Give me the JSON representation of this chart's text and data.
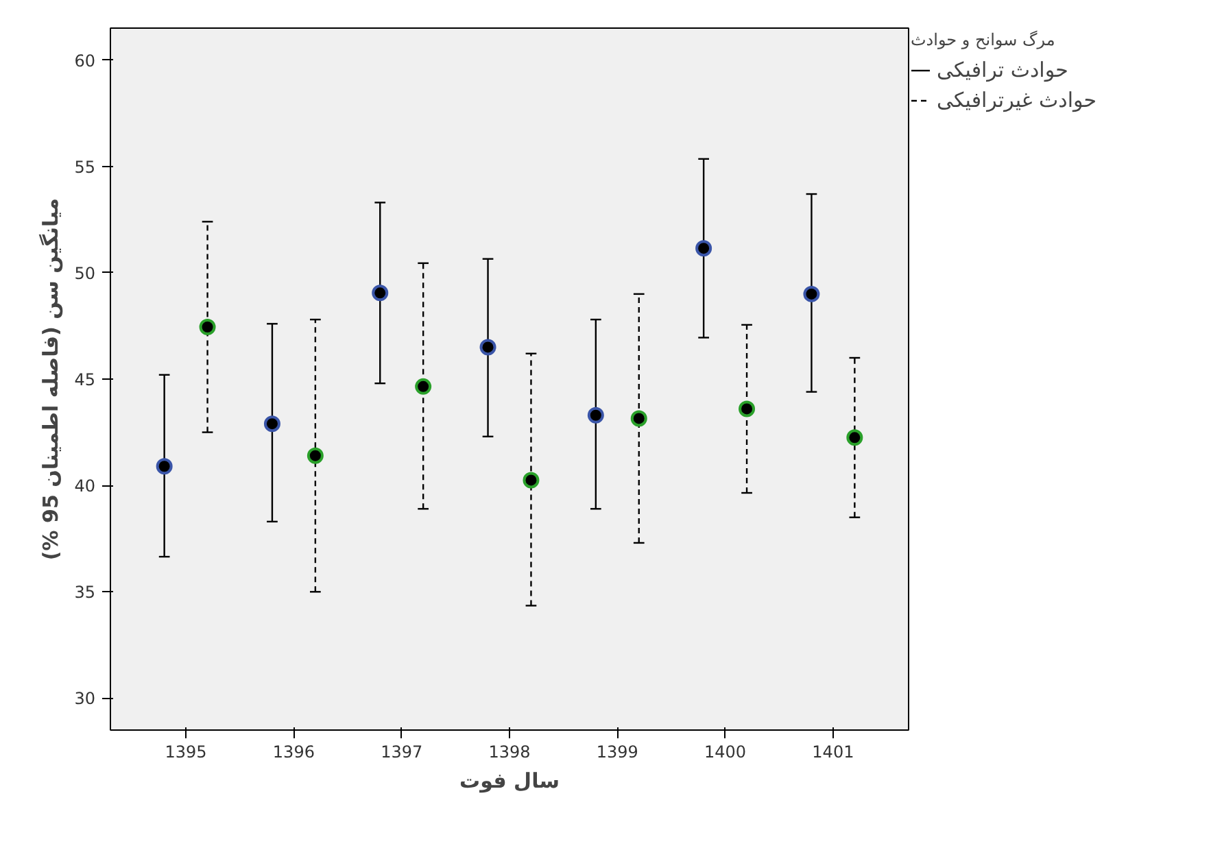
{
  "chart_data": {
    "type": "scatter",
    "xlabel": "سال فوت",
    "ylabel": "میانگین سن (فاصله اطمینان 95 %)",
    "legend_title": "مرگ سوانح و حوادث",
    "categories": [
      "1395",
      "1396",
      "1397",
      "1398",
      "1399",
      "1400",
      "1401"
    ],
    "series": [
      {
        "name": "حوادث ترافیکی",
        "color": "#3a55a8",
        "line_style": "solid",
        "values": [
          40.9,
          42.9,
          49.05,
          46.5,
          43.3,
          51.15,
          49.0
        ],
        "errors": [
          [
            36.65,
            45.2
          ],
          [
            38.3,
            47.6
          ],
          [
            44.8,
            53.3
          ],
          [
            42.3,
            50.65
          ],
          [
            38.9,
            47.8
          ],
          [
            46.95,
            55.35
          ],
          [
            44.4,
            53.7
          ]
        ]
      },
      {
        "name": "حوادث غیرترافیکی",
        "color": "#2aa02a",
        "line_style": "dashed",
        "values": [
          47.45,
          41.4,
          44.65,
          40.25,
          43.15,
          43.6,
          42.25
        ],
        "errors": [
          [
            42.5,
            52.4
          ],
          [
            35.0,
            47.8
          ],
          [
            38.9,
            50.45
          ],
          [
            34.35,
            46.2
          ],
          [
            37.3,
            49.0
          ],
          [
            39.65,
            47.55
          ],
          [
            38.5,
            46.0
          ]
        ]
      }
    ],
    "ylim": [
      28.5,
      61.5
    ],
    "yticks": [
      30,
      35,
      40,
      45,
      50,
      55,
      60
    ],
    "grid": false,
    "legend": "right",
    "marker": "circle"
  }
}
